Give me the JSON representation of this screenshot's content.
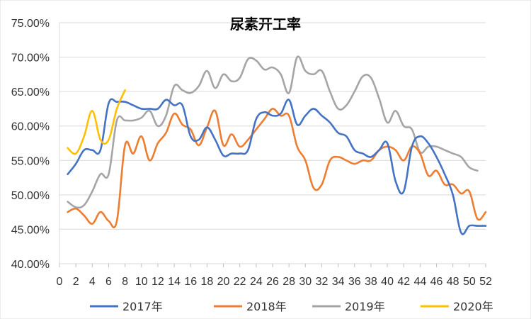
{
  "chart_data": {
    "type": "line",
    "title": "尿素开工率",
    "xlabel": "",
    "ylabel": "",
    "xlim": [
      0,
      52
    ],
    "ylim": [
      40,
      75
    ],
    "x_ticks": [
      0,
      2,
      4,
      6,
      8,
      10,
      12,
      14,
      16,
      18,
      20,
      22,
      24,
      26,
      28,
      30,
      32,
      34,
      36,
      38,
      40,
      42,
      44,
      46,
      48,
      50,
      52
    ],
    "y_ticks": [
      "40.00%",
      "45.00%",
      "50.00%",
      "55.00%",
      "60.00%",
      "65.00%",
      "70.00%",
      "75.00%"
    ],
    "y_tick_values": [
      40,
      45,
      50,
      55,
      60,
      65,
      70,
      75
    ],
    "grid": "horizontal",
    "legend_position": "bottom",
    "series": [
      {
        "name": "2017年",
        "color": "#4472C4",
        "x": [
          1,
          2,
          3,
          4,
          5,
          6,
          7,
          8,
          9,
          10,
          11,
          12,
          13,
          14,
          15,
          16,
          17,
          18,
          19,
          20,
          21,
          22,
          23,
          24,
          25,
          26,
          27,
          28,
          29,
          30,
          31,
          32,
          33,
          34,
          35,
          36,
          37,
          38,
          39,
          40,
          41,
          42,
          43,
          44,
          45,
          46,
          47,
          48,
          49,
          50,
          51,
          52
        ],
        "values": [
          53,
          54.5,
          56.5,
          56.5,
          56.5,
          63.3,
          63.5,
          63.5,
          63,
          62.5,
          62.5,
          62.5,
          63.8,
          63,
          63,
          58.5,
          58,
          59.8,
          58,
          55.7,
          56,
          56,
          56.5,
          61,
          62,
          61.5,
          61.8,
          63.8,
          60.2,
          61.5,
          62.5,
          61.5,
          60.5,
          59,
          58.5,
          56.5,
          56,
          55.5,
          56.5,
          57.5,
          52,
          50.5,
          57,
          58.5,
          57.5,
          55.5,
          53,
          50,
          44.5,
          45.5,
          45.5,
          45.5
        ]
      },
      {
        "name": "2018年",
        "color": "#ED7D31",
        "x": [
          1,
          2,
          3,
          4,
          5,
          6,
          7,
          8,
          9,
          10,
          11,
          12,
          13,
          14,
          15,
          16,
          17,
          18,
          19,
          20,
          21,
          22,
          23,
          24,
          25,
          26,
          27,
          28,
          29,
          30,
          31,
          32,
          33,
          34,
          35,
          36,
          37,
          38,
          39,
          40,
          41,
          42,
          43,
          44,
          45,
          46,
          47,
          48,
          49,
          50,
          51,
          52
        ],
        "values": [
          47.5,
          48,
          47,
          45.8,
          47.5,
          46.2,
          46.2,
          57.2,
          56,
          58.5,
          55,
          57.5,
          59,
          61.8,
          60.2,
          59.5,
          57.2,
          59.8,
          62.2,
          57.2,
          58.8,
          57,
          58,
          59.5,
          61,
          62.5,
          61.5,
          61.5,
          57,
          55,
          51,
          51.5,
          55,
          55.5,
          55,
          54.5,
          55,
          55,
          56.5,
          57,
          56.5,
          55,
          57,
          56,
          52.8,
          53.5,
          51.5,
          51.5,
          50.2,
          50.5,
          46.5,
          47.5
        ]
      },
      {
        "name": "2019年",
        "color": "#A5A5A5",
        "x": [
          1,
          2,
          3,
          4,
          5,
          6,
          7,
          8,
          9,
          10,
          11,
          12,
          13,
          14,
          15,
          16,
          17,
          18,
          19,
          20,
          21,
          22,
          23,
          24,
          25,
          26,
          27,
          28,
          29,
          30,
          31,
          32,
          33,
          34,
          35,
          36,
          37,
          38,
          39,
          40,
          41,
          42,
          43,
          44,
          45,
          46,
          47,
          48,
          49,
          50,
          51
        ],
        "values": [
          49,
          48.2,
          48.5,
          50.5,
          53,
          53,
          60.8,
          60.8,
          60.8,
          61.2,
          62.2,
          60,
          61.5,
          65.8,
          65.2,
          64.8,
          65.8,
          68,
          65.5,
          67.5,
          66.5,
          67,
          69.7,
          69.5,
          68.2,
          68.5,
          67.5,
          64.8,
          70,
          68,
          67.5,
          68,
          65,
          62.5,
          63,
          65,
          67.2,
          67,
          64,
          60.5,
          62.2,
          60,
          59.5,
          56.2,
          57,
          57,
          56.5,
          56,
          55.5,
          54,
          53.5
        ]
      },
      {
        "name": "2020年",
        "color": "#FFC000",
        "x": [
          1,
          2,
          3,
          4,
          5,
          6,
          7,
          8
        ],
        "values": [
          56.8,
          56,
          58.5,
          62.2,
          58,
          58,
          62.5,
          65.2
        ]
      }
    ]
  }
}
